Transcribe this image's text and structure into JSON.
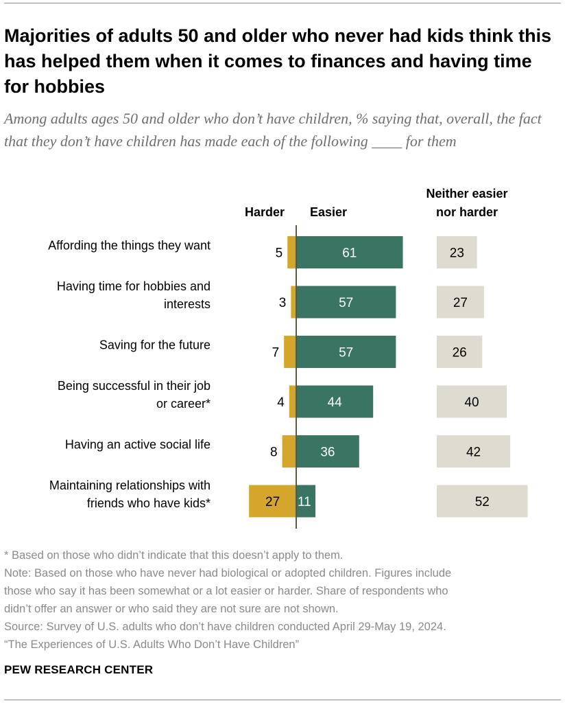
{
  "header": {
    "title": "Majorities of adults 50 and older who never had kids think this has helped them when it comes to finances and having time for hobbies",
    "subtitle": "Among adults ages 50 and older who don’t have children, % saying that, overall, the fact that they don’t have children has made each of the following ____ for them"
  },
  "chart_data": {
    "type": "bar",
    "layout": "diverging-stacked-bar with separate neutral column",
    "column_headers": {
      "harder": "Harder",
      "easier": "Easier",
      "neither": [
        "Neither easier",
        "nor harder"
      ]
    },
    "categories": [
      [
        "Affording the things they want"
      ],
      [
        "Having time for hobbies and",
        "interests"
      ],
      [
        "Saving for the future"
      ],
      [
        "Being successful in their job",
        "or career*"
      ],
      [
        "Having an active social life"
      ],
      [
        "Maintaining relationships with",
        "friends who have kids*"
      ]
    ],
    "series": [
      {
        "name": "Harder",
        "color": "#d4a72c",
        "values": [
          5,
          3,
          7,
          4,
          8,
          27
        ]
      },
      {
        "name": "Easier",
        "color": "#3a7563",
        "values": [
          61,
          57,
          57,
          44,
          36,
          11
        ]
      },
      {
        "name": "Neither easier nor harder",
        "color": "#dedbd0",
        "values": [
          23,
          27,
          26,
          40,
          42,
          52
        ]
      }
    ]
  },
  "notes": {
    "asterisk": "* Based on those who didn’t indicate that this doesn’t apply to them.",
    "note_lines": [
      "Note: Based on those who have never had biological or adopted children. Figures include",
      "those who say it has been somewhat or a lot easier or harder. Share of respondents who",
      "didn’t offer an answer or who said they are not sure are not shown."
    ],
    "source_lines": [
      "Source: Survey of U.S. adults who don’t have children conducted April 29-May 19, 2024.",
      "“The Experiences of U.S. Adults Who Don’t Have Children”"
    ]
  },
  "footer": {
    "brand": "PEW RESEARCH CENTER"
  }
}
